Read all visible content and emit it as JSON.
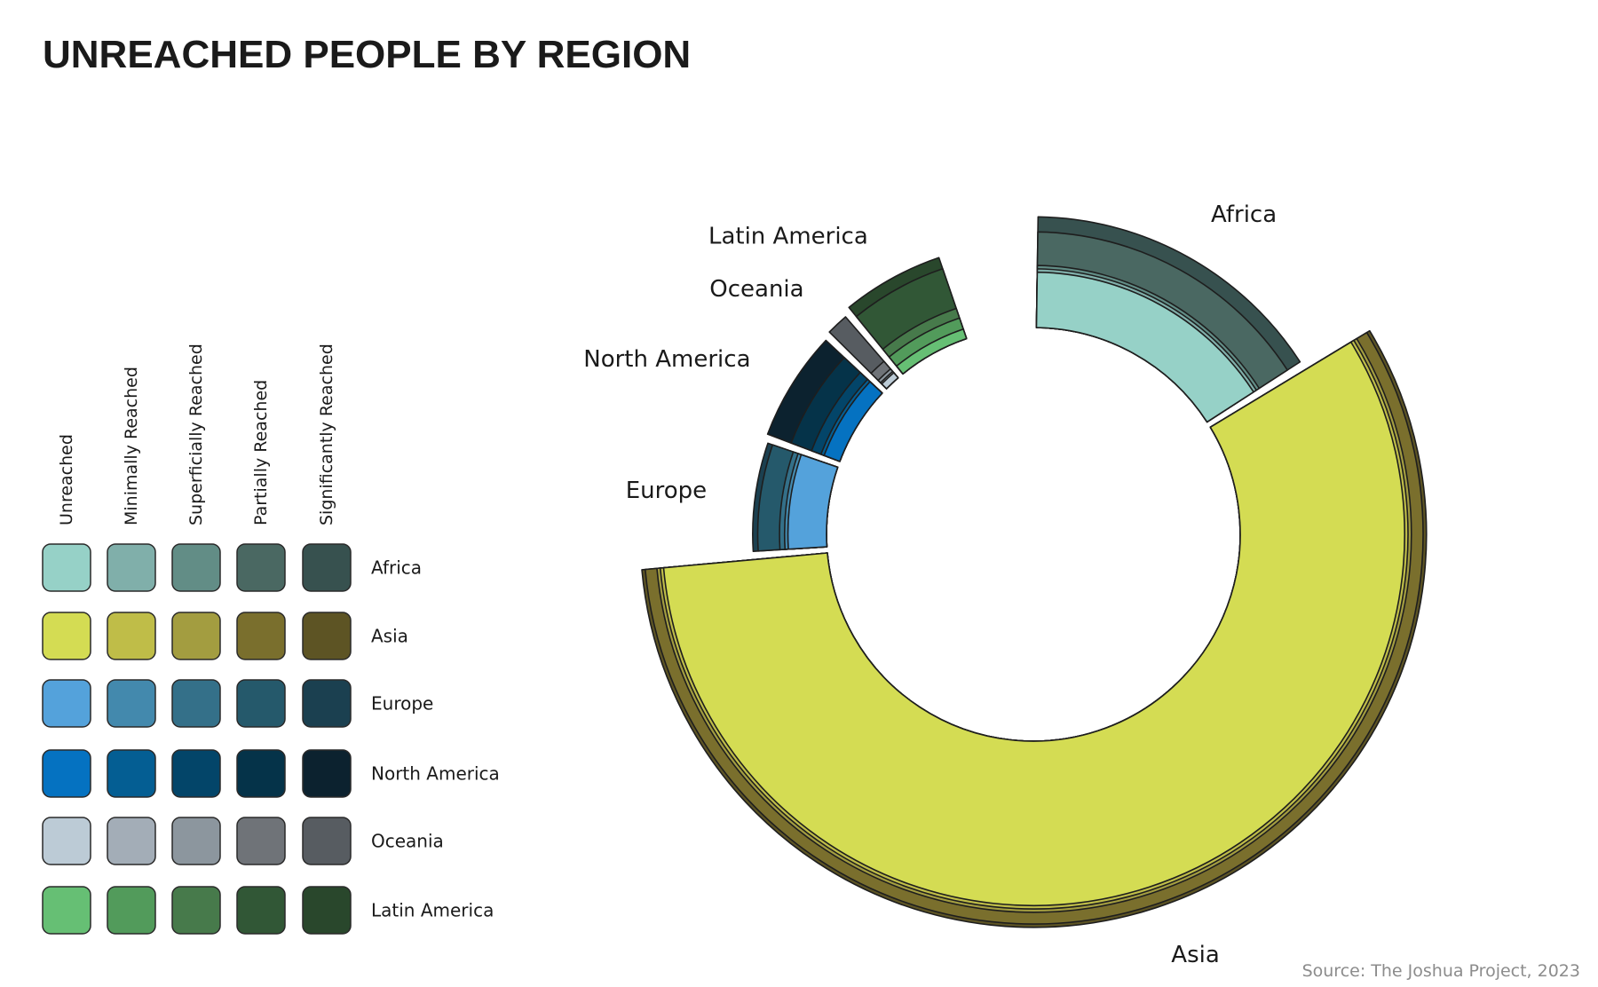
{
  "chart_data": {
    "type": "nested-polar-sunburst",
    "title": "UNREACHED PEOPLE BY REGION",
    "source": "Source: The Joshua Project, 2023",
    "levels": [
      "Unreached",
      "Minimally Reached",
      "Superficially Reached",
      "Partially Reached",
      "Significantly Reached"
    ],
    "series": [
      {
        "name": "Africa",
        "share_of_circle": 0.161,
        "colors": [
          "#96d1c7",
          "#80afaa",
          "#628d86",
          "#4a6862",
          "#37514f"
        ],
        "cumulative_radius_fraction": [
          0.33,
          0.35,
          0.37,
          0.57,
          0.66
        ]
      },
      {
        "name": "Asia",
        "share_of_circle": 0.577,
        "colors": [
          "#d4dc53",
          "#bfbd48",
          "#a39d40",
          "#7a6f2d",
          "#5d5424"
        ],
        "cumulative_radius_fraction": [
          0.98,
          1.0,
          1.02,
          1.09,
          1.11
        ]
      },
      {
        "name": "Europe",
        "share_of_circle": 0.067,
        "colors": [
          "#54a2db",
          "#4389ad",
          "#347089",
          "#25596b",
          "#1b4050"
        ],
        "cumulative_radius_fraction": [
          0.23,
          0.25,
          0.28,
          0.41,
          0.44
        ]
      },
      {
        "name": "North America",
        "share_of_circle": 0.067,
        "colors": [
          "#0572c1",
          "#045e93",
          "#034569",
          "#053349",
          "#0c222f"
        ],
        "cumulative_radius_fraction": [
          0.1,
          0.12,
          0.18,
          0.31,
          0.46
        ]
      },
      {
        "name": "Oceania",
        "share_of_circle": 0.017,
        "colors": [
          "#bccbd6",
          "#a3adb7",
          "#8c969e",
          "#6f7378",
          "#575c61"
        ],
        "cumulative_radius_fraction": [
          0.04,
          0.05,
          0.07,
          0.13,
          0.48
        ]
      },
      {
        "name": "Latin America",
        "share_of_circle": 0.061,
        "colors": [
          "#66bf74",
          "#529b5b",
          "#477a4b",
          "#315736",
          "#29472c"
        ],
        "cumulative_radius_fraction": [
          0.06,
          0.13,
          0.19,
          0.44,
          0.51
        ]
      }
    ]
  }
}
